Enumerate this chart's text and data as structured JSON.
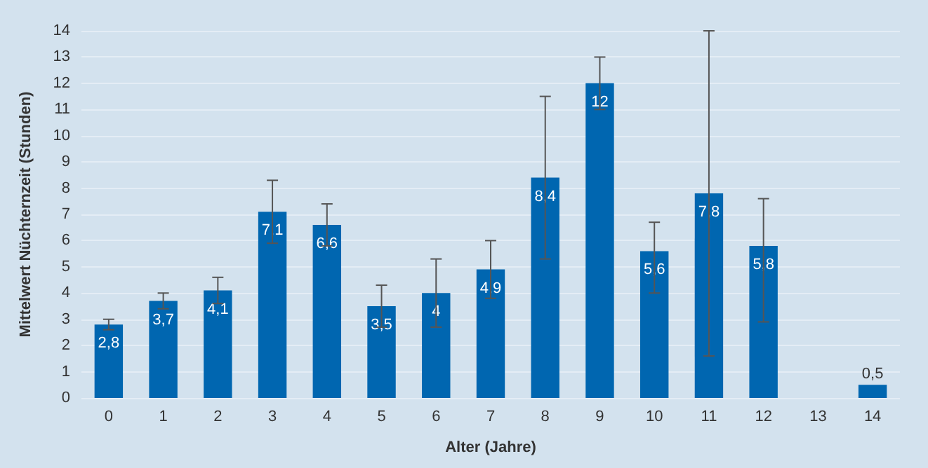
{
  "chart_data": {
    "type": "bar",
    "xlabel": "Alter (Jahre)",
    "ylabel": "Mittelwert Nüchternzeit (Stunden)",
    "categories": [
      "0",
      "1",
      "2",
      "3",
      "4",
      "5",
      "6",
      "7",
      "8",
      "9",
      "10",
      "11",
      "12",
      "13",
      "14"
    ],
    "values": [
      2.8,
      3.7,
      4.1,
      7.1,
      6.6,
      3.5,
      4,
      4.9,
      8.4,
      12,
      5.6,
      7.8,
      5.8,
      null,
      0.5
    ],
    "value_labels": [
      "2,8",
      "3,7",
      "4,1",
      "7,1",
      "6,6",
      "3,5",
      "4",
      "4,9",
      "8,4",
      "12",
      "5,6",
      "7,8",
      "5,8",
      null,
      "0,5"
    ],
    "errors": [
      0.2,
      0.3,
      0.5,
      1.2,
      0.8,
      0.8,
      1.3,
      1.1,
      3.1,
      1.0,
      [
        4.0,
        6.7
      ],
      6.2,
      [
        2.9,
        7.6
      ],
      null,
      null
    ],
    "color": "#0066b0",
    "ylim": [
      0,
      14
    ],
    "yticks": [
      0,
      1,
      2,
      3,
      4,
      5,
      6,
      7,
      8,
      9,
      10,
      11,
      12,
      13,
      14
    ],
    "grid": "y"
  }
}
